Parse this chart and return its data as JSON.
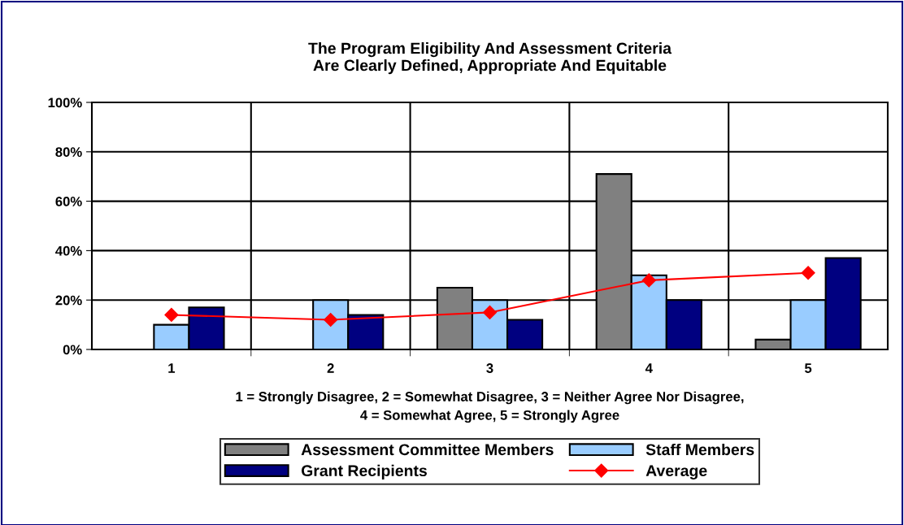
{
  "chart_data": {
    "type": "bar",
    "title": "The Program Eligibility And Assessment Criteria\nAre Clearly Defined, Appropriate And Equitable",
    "xlabel": "1 = Strongly Disagree, 2 = Somewhat Disagree, 3 = Neither Agree Nor Disagree,\n4 = Somewhat Agree, 5 = Strongly Agree",
    "categories": [
      "1",
      "2",
      "3",
      "4",
      "5"
    ],
    "series": [
      {
        "name": "Assessment Committee Members",
        "color": "#808080",
        "values": [
          null,
          null,
          25,
          71,
          4
        ]
      },
      {
        "name": "Staff Members",
        "color": "#99ccff",
        "values": [
          10,
          20,
          20,
          30,
          20
        ]
      },
      {
        "name": "Grant Recipients",
        "color": "#000080",
        "values": [
          17,
          14,
          12,
          20,
          37
        ]
      },
      {
        "name": "Average",
        "type": "line",
        "color": "#ff0000",
        "marker": "diamond",
        "values": [
          14,
          12,
          15,
          28,
          31
        ]
      }
    ],
    "ylim": [
      0,
      100
    ],
    "yticks": [
      {
        "value": 0,
        "label": "0%"
      },
      {
        "value": 20,
        "label": "20%"
      },
      {
        "value": 40,
        "label": "40%"
      },
      {
        "value": 60,
        "label": "60%"
      },
      {
        "value": 80,
        "label": "80%"
      },
      {
        "value": 100,
        "label": "100%"
      }
    ],
    "grid": true,
    "legend": "bottom"
  }
}
